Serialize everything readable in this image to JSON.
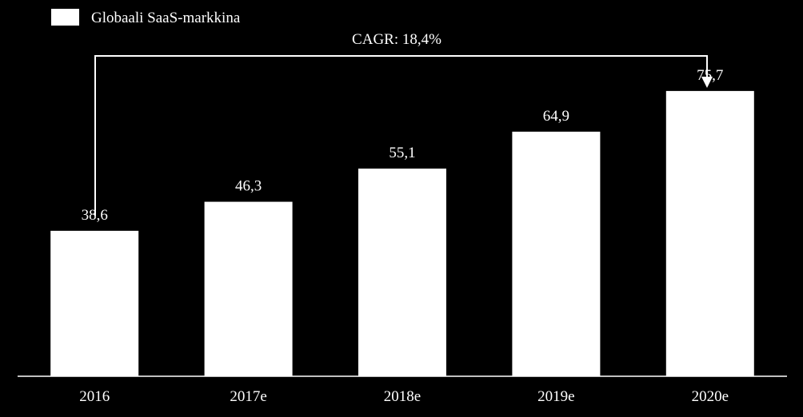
{
  "chart_data": {
    "type": "bar",
    "categories": [
      "2016",
      "2017e",
      "2018e",
      "2019e",
      "2020e"
    ],
    "series": [
      {
        "name": "Globaali SaaS-markkina",
        "values": [
          38.6,
          46.3,
          55.1,
          64.9,
          75.7
        ]
      }
    ],
    "data_labels": [
      "38,6",
      "46,3",
      "55,1",
      "64,9",
      "75,7"
    ],
    "annotation": "CAGR: 18,4%",
    "legend_position": "top-left",
    "grid": false,
    "ylim": [
      0,
      85
    ],
    "colors": {
      "background": "#000000",
      "bar": "#ffffff",
      "text": "#ffffff"
    }
  }
}
